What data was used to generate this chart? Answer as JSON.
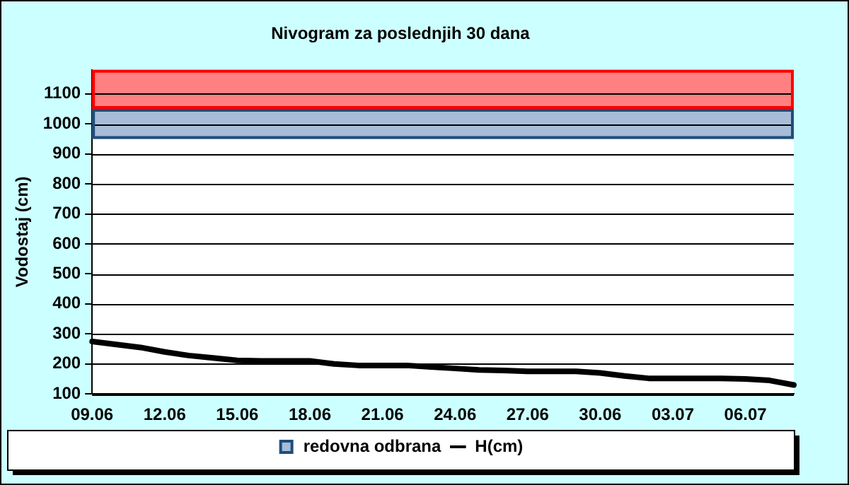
{
  "chart_data": {
    "type": "line",
    "title": "Nivogram za poslednjih 30 dana",
    "ylabel": "Vodostaj (cm)",
    "categories": [
      "09.06",
      null,
      null,
      "12.06",
      null,
      null,
      "15.06",
      null,
      null,
      "18.06",
      null,
      null,
      "21.06",
      null,
      null,
      "24.06",
      null,
      null,
      "27.06",
      null,
      null,
      "30.06",
      null,
      null,
      "03.07",
      null,
      null,
      "06.07",
      null,
      null
    ],
    "series": [
      {
        "name": "H(cm)",
        "color": "#000000",
        "values": [
          275,
          265,
          255,
          240,
          228,
          220,
          212,
          210,
          210,
          210,
          200,
          195,
          195,
          195,
          190,
          185,
          180,
          178,
          175,
          175,
          175,
          170,
          160,
          152,
          152,
          152,
          152,
          150,
          145,
          130
        ]
      }
    ],
    "ylim": [
      100,
      1180
    ],
    "yticks": [
      100,
      200,
      300,
      400,
      500,
      600,
      700,
      800,
      900,
      1000,
      1100
    ],
    "grid": "y",
    "legend": "bottom",
    "marker": "none",
    "line_style": "solid",
    "bands": [
      {
        "axis": "y",
        "from": 1050,
        "to": 1180,
        "color": "#ff8080"
      },
      {
        "axis": "y",
        "from": 950,
        "to": 1050,
        "color": "#a6bcd9",
        "label": "redovna odbrana"
      }
    ]
  }
}
